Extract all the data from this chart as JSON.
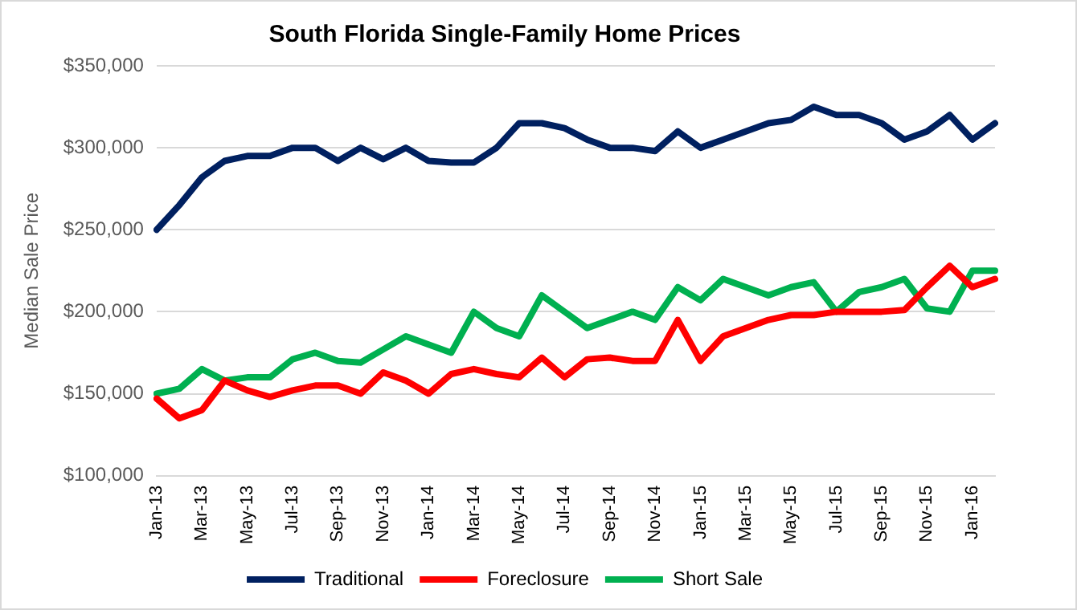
{
  "chart_data": {
    "type": "line",
    "title": "South Florida Single-Family Home Prices",
    "ylabel": "Median Sale Price",
    "categories": [
      "Jan-13",
      null,
      "Mar-13",
      null,
      "May-13",
      null,
      "Jul-13",
      null,
      "Sep-13",
      null,
      "Nov-13",
      null,
      "Jan-14",
      null,
      "Mar-14",
      null,
      "May-14",
      null,
      "Jul-14",
      null,
      "Sep-14",
      null,
      "Nov-14",
      null,
      "Jan-15",
      null,
      "Mar-15",
      null,
      "May-15",
      null,
      "Jul-15",
      null,
      "Sep-15",
      null,
      "Nov-15",
      null,
      "Jan-16",
      null
    ],
    "series": [
      {
        "name": "Traditional",
        "color": "#002060",
        "values": [
          250000,
          265000,
          282000,
          292000,
          295000,
          295000,
          300000,
          300000,
          292000,
          300000,
          293000,
          300000,
          292000,
          291000,
          291000,
          300000,
          315000,
          315000,
          312000,
          305000,
          300000,
          300000,
          298000,
          310000,
          300000,
          305000,
          310000,
          315000,
          317000,
          325000,
          320000,
          320000,
          315000,
          305000,
          310000,
          320000,
          305000,
          315000
        ]
      },
      {
        "name": "Foreclosure",
        "color": "#ff0000",
        "values": [
          147000,
          135000,
          140000,
          158000,
          152000,
          148000,
          152000,
          155000,
          155000,
          150000,
          163000,
          158000,
          150000,
          162000,
          165000,
          162000,
          160000,
          172000,
          160000,
          171000,
          172000,
          170000,
          170000,
          195000,
          170000,
          185000,
          190000,
          195000,
          198000,
          198000,
          200000,
          200000,
          200000,
          201000,
          215000,
          228000,
          215000,
          220000
        ]
      },
      {
        "name": "Short Sale",
        "color": "#00b050",
        "values": [
          150000,
          153000,
          165000,
          158000,
          160000,
          160000,
          171000,
          175000,
          170000,
          169000,
          177000,
          185000,
          180000,
          175000,
          200000,
          190000,
          185000,
          210000,
          200000,
          190000,
          195000,
          200000,
          195000,
          215000,
          207000,
          220000,
          215000,
          210000,
          215000,
          218000,
          200000,
          212000,
          215000,
          220000,
          202000,
          200000,
          225000,
          225000
        ]
      }
    ],
    "ylim": [
      100000,
      350000
    ],
    "yticks": [
      {
        "value": 100000,
        "label": "$100,000"
      },
      {
        "value": 150000,
        "label": "$150,000"
      },
      {
        "value": 200000,
        "label": "$200,000"
      },
      {
        "value": 250000,
        "label": "$250,000"
      },
      {
        "value": 300000,
        "label": "$300,000"
      },
      {
        "value": 350000,
        "label": "$350,000"
      }
    ],
    "grid": "y",
    "legend": "bottom",
    "marker": "none",
    "line_style": "solid"
  }
}
